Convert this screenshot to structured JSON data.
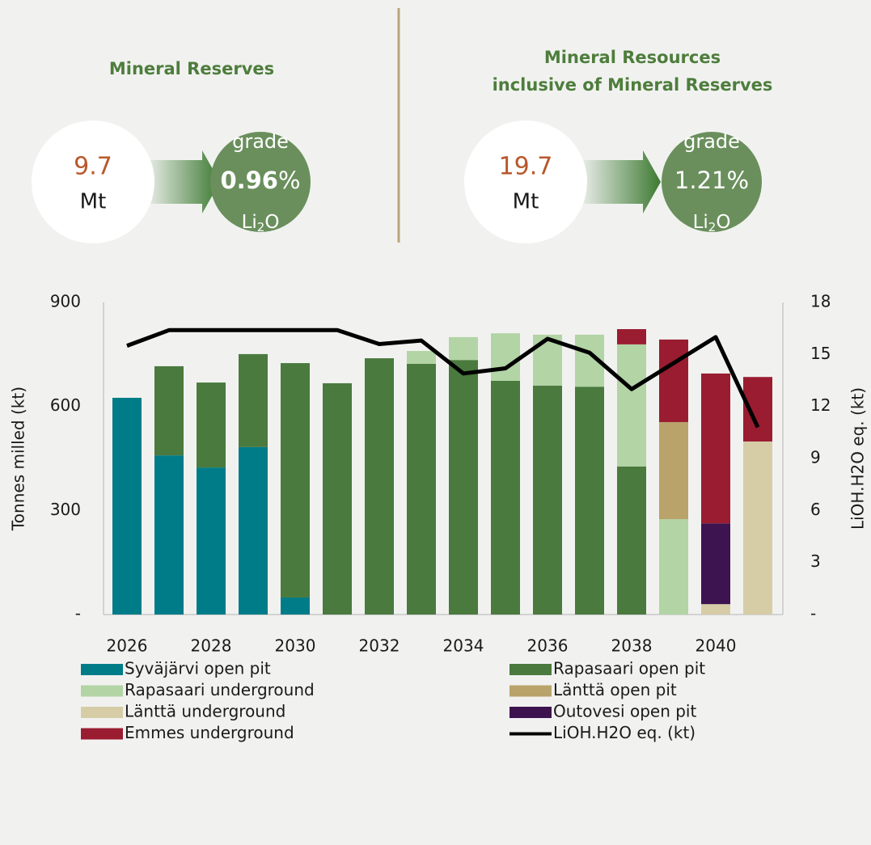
{
  "header": {
    "left": {
      "title": "Mineral Reserves",
      "tonnage": "9.7",
      "unit": "Mt",
      "grade_word": "grade",
      "grade": "0.96",
      "percent": "%",
      "li": "Li",
      "sub": "2",
      "o": "O"
    },
    "right": {
      "title": [
        "Mineral Resources",
        "inclusive of Mineral Reserves"
      ],
      "tonnage": "19.7",
      "unit": "Mt",
      "grade_word": "grade",
      "grade": "1.21%",
      "li": "Li",
      "sub": "2",
      "o": "O"
    }
  },
  "chart_data": {
    "type": "bar",
    "stacked": true,
    "ylabel": "Tonnes milled (kt)",
    "y2label": "LiOH.H2O eq. (kt)",
    "categories": [
      "2026",
      null,
      "2028",
      null,
      "2030",
      null,
      "2032",
      null,
      "2034",
      null,
      "2036",
      null,
      "2038",
      null,
      "2040",
      null
    ],
    "ylim": [
      0,
      900
    ],
    "yticks": [
      {
        "value": 0,
        "label": "-"
      },
      300,
      600,
      900
    ],
    "y2lim": [
      0,
      18
    ],
    "y2ticks": [
      {
        "value": 0,
        "label": "-"
      },
      3,
      6,
      9,
      12,
      15,
      18
    ],
    "grid": false,
    "series": [
      {
        "name": "Syväjärvi open pit",
        "color": "#007c89",
        "values": [
          625,
          459,
          424,
          483,
          49,
          0,
          0,
          0,
          0,
          0,
          0,
          0,
          0,
          0,
          0,
          0
        ]
      },
      {
        "name": "Rapasaari open pit",
        "color": "#4a7a3e",
        "values": [
          0,
          257,
          245,
          268,
          676,
          667,
          739,
          723,
          734,
          674,
          660,
          657,
          427,
          0,
          0,
          0
        ]
      },
      {
        "name": "Rapasaari underground",
        "color": "#b3d4a5",
        "values": [
          0,
          0,
          0,
          0,
          0,
          0,
          0,
          37,
          66,
          137,
          147,
          150,
          352,
          275,
          0,
          0
        ]
      },
      {
        "name": "Länttä open pit",
        "color": "#b9a36a",
        "values": [
          0,
          0,
          0,
          0,
          0,
          0,
          0,
          0,
          0,
          0,
          0,
          0,
          0,
          280,
          0,
          0
        ]
      },
      {
        "name": "Länttä underground",
        "color": "#d6cca6",
        "values": [
          0,
          0,
          0,
          0,
          0,
          0,
          0,
          0,
          0,
          0,
          0,
          0,
          0,
          0,
          30,
          499
        ]
      },
      {
        "name": "Outovesi open pit",
        "color": "#3e1450",
        "values": [
          0,
          0,
          0,
          0,
          0,
          0,
          0,
          0,
          0,
          0,
          0,
          0,
          0,
          0,
          233,
          0
        ]
      },
      {
        "name": "Emmes underground",
        "color": "#9a1c31",
        "values": [
          0,
          0,
          0,
          0,
          0,
          0,
          0,
          0,
          0,
          0,
          0,
          0,
          44,
          238,
          432,
          186
        ]
      },
      {
        "name": "LiOH.H2O eq. (kt)",
        "type": "line",
        "axis": "y2",
        "color": "#000000",
        "values": [
          15.5,
          16.4,
          16.4,
          16.4,
          16.4,
          16.4,
          15.6,
          15.8,
          13.9,
          14.2,
          15.9,
          15.1,
          13.0,
          14.5,
          16.0,
          10.8
        ]
      }
    ]
  }
}
